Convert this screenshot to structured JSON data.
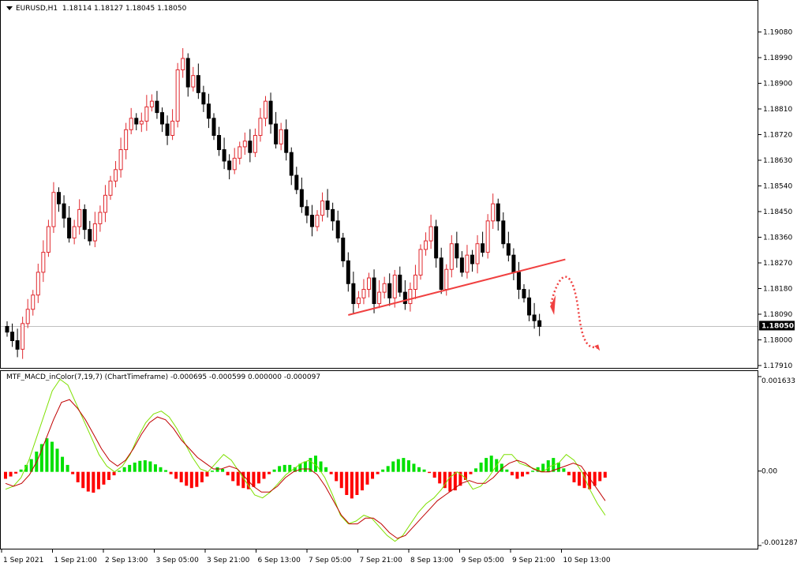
{
  "header": {
    "symbol": "EURUSD,H1",
    "ohlc": "1.18114 1.18127 1.18045 1.18050"
  },
  "indicator_header": "MTF_MACD_inColor(7,19,7) (ChartTimeframe) -0.000695 -0.000599 0.000000 -0.000097",
  "chart_data": [
    {
      "type": "candlestick",
      "title": "EURUSD,H1",
      "ylim": [
        1.1791,
        1.1917
      ],
      "y_ticks": [
        "1.19080",
        "1.18990",
        "1.18900",
        "1.18810",
        "1.18720",
        "1.18630",
        "1.18540",
        "1.18450",
        "1.18360",
        "1.18270",
        "1.18180",
        "1.18090",
        "1.18000",
        "1.17910"
      ],
      "current_price_label": "1.18050",
      "current_price": 1.1805,
      "bull_color": "#e0282e",
      "bear_color": "#000000",
      "closes": [
        1.1803,
        1.18,
        1.1797,
        1.1806,
        1.1811,
        1.1816,
        1.1824,
        1.1831,
        1.184,
        1.1852,
        1.1848,
        1.1843,
        1.1836,
        1.184,
        1.1846,
        1.1839,
        1.1835,
        1.1841,
        1.1845,
        1.1851,
        1.1856,
        1.186,
        1.1867,
        1.1874,
        1.1878,
        1.1876,
        1.1877,
        1.1882,
        1.1884,
        1.188,
        1.1876,
        1.1872,
        1.1877,
        1.1895,
        1.1899,
        1.1889,
        1.1893,
        1.1887,
        1.1883,
        1.1878,
        1.1872,
        1.1867,
        1.1863,
        1.186,
        1.1864,
        1.1868,
        1.187,
        1.1866,
        1.1872,
        1.1878,
        1.1884,
        1.1876,
        1.1869,
        1.1874,
        1.1866,
        1.1858,
        1.1853,
        1.1847,
        1.1844,
        1.184,
        1.1844,
        1.1849,
        1.1846,
        1.1842,
        1.1836,
        1.1828,
        1.182,
        1.1813,
        1.1815,
        1.1818,
        1.1822,
        1.1813,
        1.1817,
        1.182,
        1.1815,
        1.1823,
        1.1817,
        1.1813,
        1.1818,
        1.1823,
        1.1832,
        1.1835,
        1.184,
        1.1829,
        1.1818,
        1.1825,
        1.1834,
        1.1829,
        1.1824,
        1.183,
        1.1827,
        1.1834,
        1.1831,
        1.1842,
        1.1848,
        1.1842,
        1.1834,
        1.183,
        1.1824,
        1.1818,
        1.1815,
        1.1809,
        1.1807,
        1.1805
      ],
      "trendline": {
        "from": [
          66,
          1.1809
        ],
        "to": [
          108,
          1.18285
        ],
        "color": "#f04040"
      },
      "projection_arrow": {
        "color": "#f04040",
        "style": "dotted"
      }
    },
    {
      "type": "histogram+line",
      "title": "MTF_MACD_inColor(7,19,7)",
      "ylim": [
        -0.001287,
        0.001633
      ],
      "y_ticks": [
        "0.001633",
        "0.00",
        "-0.001287"
      ],
      "x_ticks": [
        "1 Sep 2021",
        "1 Sep 21:00",
        "2 Sep 13:00",
        "3 Sep 05:00",
        "3 Sep 21:00",
        "6 Sep 13:00",
        "7 Sep 05:00",
        "7 Sep 21:00",
        "8 Sep 13:00",
        "9 Sep 05:00",
        "9 Sep 21:00",
        "10 Sep 13:00"
      ],
      "series": [
        {
          "color_positive": "#00e000",
          "color_negative": "#ff0000",
          "values": [
            -0.00012,
            -8e-05,
            -3e-05,
            4e-05,
            0.00012,
            0.00022,
            0.00035,
            0.00048,
            0.00058,
            0.00052,
            0.0004,
            0.00026,
            0.00012,
            -4e-05,
            -0.00018,
            -0.00028,
            -0.00034,
            -0.00036,
            -0.0003,
            -0.00022,
            -0.00014,
            -6e-05,
            2e-05,
            8e-05,
            0.00012,
            0.00016,
            0.00019,
            0.0002,
            0.00018,
            0.00013,
            8e-05,
            3e-05,
            -4e-05,
            -0.00012,
            -0.00018,
            -0.00024,
            -0.00028,
            -0.00026,
            -0.00018,
            -8e-05,
            2e-05,
            8e-05,
            5e-05,
            -6e-05,
            -0.00016,
            -0.00024,
            -0.00028,
            -0.0003,
            -0.00026,
            -0.0002,
            -0.00012,
            -4e-05,
            4e-05,
            0.0001,
            0.00012,
            0.00012,
            8e-05,
            0.00014,
            0.00018,
            0.00024,
            0.00028,
            0.00018,
            8e-05,
            -4e-05,
            -0.00016,
            -0.00028,
            -0.0004,
            -0.00046,
            -0.0004,
            -0.00032,
            -0.00022,
            -0.00012,
            -4e-05,
            4e-05,
            0.0001,
            0.00018,
            0.00022,
            0.00024,
            0.0002,
            0.00014,
            8e-05,
            4e-05,
            -2e-05,
            -0.0001,
            -0.0002,
            -0.00028,
            -0.00034,
            -0.00032,
            -0.00024,
            -0.00014,
            -4e-05,
            6e-05,
            0.00016,
            0.00024,
            0.00028,
            0.00022,
            0.00014,
            4e-05,
            -6e-05,
            -0.00012,
            -8e-05,
            -4e-05,
            2e-05,
            8e-05,
            0.00014,
            0.0002,
            0.00024,
            0.00016,
            6e-05,
            -6e-05,
            -0.00018,
            -0.00024,
            -0.00028,
            -0.0003,
            -0.00024,
            -0.00016,
            -0.0001
          ]
        },
        {
          "name": "",
          "color": "#7ee000",
          "values": [
            -0.0003,
            -0.00025,
            -0.0001,
            0.0002,
            0.0006,
            0.001,
            0.0014,
            0.0016,
            0.0015,
            0.0012,
            0.0009,
            0.0006,
            0.0003,
            0.0001,
            0.0,
            0.0001,
            0.0003,
            0.0006,
            0.00085,
            0.001,
            0.00105,
            0.00095,
            0.00075,
            0.0005,
            0.00025,
            5e-05,
            0.0,
            0.00015,
            0.0003,
            0.0002,
            0.0,
            -0.0002,
            -0.0004,
            -0.00045,
            -0.00035,
            -0.0002,
            -5e-05,
            5e-05,
            0.00015,
            0.0002,
            0.0001,
            -0.0001,
            -0.0004,
            -0.00075,
            -0.0009,
            -0.00085,
            -0.00075,
            -0.0008,
            -0.00095,
            -0.0011,
            -0.0012,
            -0.0011,
            -0.0009,
            -0.0007,
            -0.00055,
            -0.00045,
            -0.0003,
            -0.0001,
            0.0,
            -0.0001,
            -0.0003,
            -0.00025,
            -0.0001,
            0.0001,
            0.0003,
            0.0003,
            0.00015,
            0.0001,
            5e-05,
            0.0,
            0.0001,
            0.00015,
            0.0003,
            0.0002,
            0.0,
            -0.0003,
            -0.00055,
            -0.00075
          ]
        },
        {
          "name": "",
          "color": "#c00000",
          "values": [
            -0.0002,
            -0.00025,
            -0.0002,
            -5e-05,
            0.0002,
            0.00055,
            0.0009,
            0.0012,
            0.00125,
            0.0011,
            0.0009,
            0.00065,
            0.0004,
            0.0002,
            0.0001,
            0.0002,
            0.0004,
            0.00065,
            0.00085,
            0.00095,
            0.0009,
            0.00075,
            0.00055,
            0.0004,
            0.00025,
            0.00015,
            5e-05,
            5e-05,
            0.0001,
            5e-05,
            -0.0001,
            -0.00025,
            -0.00035,
            -0.00035,
            -0.00025,
            -0.0001,
            0.0,
            5e-05,
            5e-05,
            -5e-05,
            -0.00025,
            -0.0005,
            -0.00075,
            -0.0009,
            -0.0009,
            -0.0008,
            -0.0008,
            -0.0009,
            -0.00105,
            -0.00115,
            -0.0011,
            -0.00095,
            -0.0008,
            -0.00065,
            -0.0005,
            -0.0004,
            -0.0003,
            -0.0002,
            -0.00015,
            -0.0002,
            -0.0002,
            -0.0001,
            5e-05,
            0.00015,
            0.0002,
            0.00015,
            5e-05,
            0.0,
            0.0,
            5e-05,
            0.0001,
            0.00015,
            0.0001,
            -0.0001,
            -0.0003,
            -0.0005
          ]
        }
      ]
    }
  ]
}
